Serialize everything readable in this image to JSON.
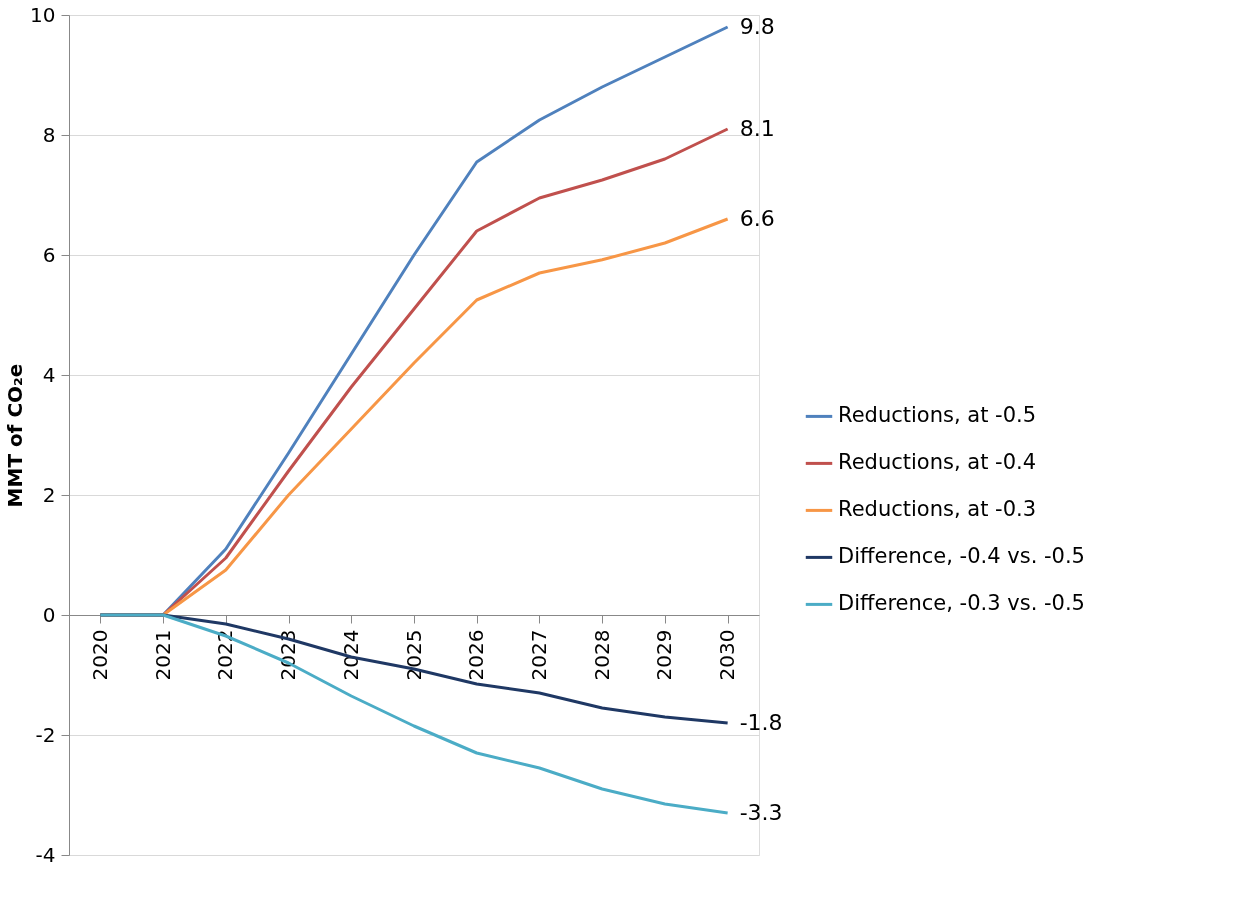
{
  "chart_data": {
    "type": "line",
    "ylabel": "MMT of CO₂e",
    "categories": [
      "2020",
      "2021",
      "2022",
      "2023",
      "2024",
      "2025",
      "2026",
      "2027",
      "2028",
      "2029",
      "2030"
    ],
    "ylim": [
      -4,
      10
    ],
    "yticks": [
      -4,
      -2,
      0,
      2,
      4,
      6,
      8,
      10
    ],
    "grid": "y",
    "legend": "right",
    "marker": "none",
    "line_style": "solid",
    "series": [
      {
        "name": "Reductions, at -0.5",
        "color": "#4f81bd",
        "values": [
          0,
          0,
          1.1,
          2.7,
          4.35,
          6.0,
          7.55,
          8.25,
          8.8,
          9.3,
          9.8
        ],
        "value_labels": [
          null,
          null,
          null,
          null,
          null,
          null,
          null,
          null,
          null,
          null,
          "9.8"
        ]
      },
      {
        "name": "Reductions, at -0.4",
        "color": "#c0504d",
        "values": [
          0,
          0,
          0.95,
          2.4,
          3.8,
          5.1,
          6.4,
          6.95,
          7.25,
          7.6,
          8.1
        ],
        "value_labels": [
          null,
          null,
          null,
          null,
          null,
          null,
          null,
          null,
          null,
          null,
          "8.1"
        ]
      },
      {
        "name": "Reductions, at -0.3",
        "color": "#f79646",
        "values": [
          0,
          0,
          0.75,
          2.0,
          3.1,
          4.2,
          5.25,
          5.7,
          5.92,
          6.2,
          6.6
        ],
        "value_labels": [
          null,
          null,
          null,
          null,
          null,
          null,
          null,
          null,
          null,
          null,
          "6.6"
        ]
      },
      {
        "name": "Difference, -0.4 vs. -0.5",
        "color": "#1f3864",
        "values": [
          0,
          0,
          -0.15,
          -0.4,
          -0.7,
          -0.9,
          -1.15,
          -1.3,
          -1.55,
          -1.7,
          -1.8
        ],
        "value_labels": [
          null,
          null,
          null,
          null,
          null,
          null,
          null,
          null,
          null,
          null,
          "-1.8"
        ]
      },
      {
        "name": "Difference, -0.3 vs. -0.5",
        "color": "#4bacc6",
        "values": [
          0,
          0,
          -0.35,
          -0.8,
          -1.35,
          -1.85,
          -2.3,
          -2.55,
          -2.9,
          -3.15,
          -3.3
        ],
        "value_labels": [
          null,
          null,
          null,
          null,
          null,
          null,
          null,
          null,
          null,
          null,
          "-3.3"
        ]
      }
    ]
  }
}
